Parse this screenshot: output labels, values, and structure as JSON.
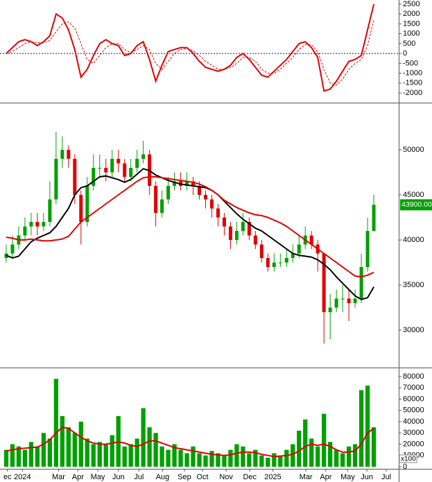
{
  "chart_data": [
    {
      "type": "line",
      "xlim": [
        -1,
        63
      ],
      "ylim": [
        -2490,
        2710
      ],
      "yticks": [
        2500,
        2000,
        1500,
        1000,
        500,
        0,
        -500,
        -1000,
        -1500,
        -2000
      ],
      "reference_line": 0,
      "reference_color": "#0000cc",
      "series": [
        {
          "color": "#e00000",
          "values": [
            0,
            300,
            600,
            700,
            600,
            400,
            600,
            900,
            2000,
            1800,
            1200,
            200,
            -1200,
            -800,
            -100,
            500,
            700,
            500,
            400,
            -100,
            0,
            400,
            600,
            -300,
            -1400,
            -600,
            100,
            200,
            300,
            300,
            0,
            -400,
            -700,
            -800,
            -900,
            -800,
            -600,
            -200,
            0,
            -300,
            -700,
            -1100,
            -1200,
            -900,
            -600,
            -300,
            100,
            500,
            600,
            300,
            -200,
            -1900,
            -1800,
            -1400,
            -900,
            -400,
            -300,
            -100,
            1200,
            2500
          ]
        },
        {
          "color": "#e00000",
          "dashed": true,
          "values": [
            0,
            100,
            300,
            500,
            600,
            550,
            550,
            650,
            1100,
            1500,
            1600,
            1300,
            500,
            -300,
            -500,
            -100,
            300,
            500,
            500,
            200,
            50,
            200,
            400,
            200,
            -500,
            -800,
            -400,
            0,
            200,
            250,
            150,
            -100,
            -400,
            -600,
            -800,
            -800,
            -700,
            -500,
            -200,
            -200,
            -400,
            -800,
            -1000,
            -1000,
            -800,
            -500,
            -200,
            200,
            450,
            450,
            100,
            -800,
            -1500,
            -1600,
            -1300,
            -800,
            -500,
            -300,
            400,
            1700
          ]
        }
      ]
    },
    {
      "type": "candlestick",
      "xlim": [
        -1,
        63
      ],
      "ylim": [
        25850,
        55080
      ],
      "yticks": [
        50000,
        45000,
        40000,
        35000,
        30000
      ],
      "up_color": "#00a000",
      "down_color": "#e00000",
      "open": [
        38000,
        38500,
        39500,
        40500,
        41500,
        42000,
        41500,
        42000,
        44500,
        49000,
        50000,
        49000,
        45000,
        42000,
        46000,
        48000,
        48000,
        47500,
        49000,
        48500,
        47000,
        48000,
        49000,
        49500,
        46000,
        43000,
        44500,
        46000,
        46500,
        46000,
        46500,
        46000,
        45000,
        44500,
        43500,
        42500,
        41500,
        40000,
        41000,
        42000,
        40500,
        39500,
        38000,
        37000,
        37500,
        37500,
        38000,
        38500,
        39500,
        40500,
        39500,
        38500,
        32000,
        32500,
        33500,
        33500,
        33000,
        33500,
        37000,
        41000
      ],
      "high": [
        39500,
        40500,
        41500,
        42500,
        43000,
        43000,
        43000,
        46500,
        52000,
        51500,
        50500,
        49500,
        45500,
        47000,
        49500,
        49500,
        49000,
        50000,
        50000,
        49000,
        49000,
        50000,
        51000,
        50000,
        46500,
        45500,
        47000,
        47500,
        47500,
        47500,
        47000,
        46500,
        45500,
        45000,
        44000,
        43000,
        42000,
        42000,
        43000,
        42500,
        41000,
        40000,
        38500,
        38500,
        38500,
        39000,
        39500,
        40500,
        41500,
        41000,
        40000,
        38500,
        34000,
        34500,
        35000,
        34500,
        34500,
        38500,
        42500,
        45000
      ],
      "low": [
        37500,
        38000,
        39000,
        40000,
        40500,
        40500,
        41000,
        41500,
        44000,
        48000,
        48000,
        44000,
        39500,
        41500,
        45500,
        47000,
        46500,
        47000,
        47500,
        46500,
        46500,
        47500,
        48500,
        45000,
        41500,
        42500,
        44000,
        45500,
        45500,
        45500,
        45000,
        44500,
        43500,
        42500,
        41500,
        40500,
        39000,
        39500,
        40500,
        40000,
        39000,
        37500,
        36500,
        36500,
        37000,
        37000,
        37500,
        38000,
        39000,
        39000,
        36500,
        28500,
        29000,
        32000,
        32000,
        31000,
        32500,
        33000,
        36500,
        41000
      ],
      "close": [
        38500,
        39500,
        40500,
        41500,
        42000,
        41500,
        42000,
        44500,
        49000,
        50000,
        49000,
        45000,
        42000,
        46000,
        48000,
        48000,
        47500,
        49000,
        48500,
        47000,
        48000,
        49000,
        49500,
        46000,
        43000,
        44500,
        46000,
        46500,
        46000,
        46500,
        46000,
        45000,
        44500,
        43500,
        42500,
        41500,
        40000,
        41000,
        42000,
        40500,
        39500,
        38000,
        37000,
        37500,
        37500,
        38000,
        38500,
        39500,
        40500,
        39500,
        38500,
        32000,
        32500,
        33500,
        33500,
        33000,
        33500,
        37000,
        41000,
        43900
      ],
      "series": [
        {
          "color": "#000000",
          "values": [
            38300,
            38000,
            38200,
            39000,
            39800,
            40200,
            40500,
            40800,
            41500,
            42500,
            43500,
            45000,
            45800,
            46000,
            46500,
            47000,
            47100,
            46900,
            46700,
            46400,
            46700,
            47300,
            47900,
            47700,
            47200,
            46900,
            46600,
            46400,
            46200,
            46100,
            46000,
            45900,
            45800,
            45500,
            45000,
            44300,
            43600,
            42900,
            42300,
            41800,
            41300,
            41000,
            40500,
            40000,
            39500,
            39000,
            38500,
            38300,
            38200,
            38100,
            37800,
            37300,
            36700,
            35900,
            35200,
            34500,
            33800,
            33400,
            33600,
            34800
          ]
        },
        {
          "color": "#e00000",
          "values": [
            40300,
            40200,
            40000,
            40000,
            40100,
            40000,
            39900,
            39900,
            40000,
            40100,
            40400,
            41200,
            42000,
            42500,
            43000,
            43500,
            44000,
            44500,
            45000,
            45500,
            46000,
            46500,
            46900,
            47000,
            47000,
            46900,
            46800,
            46700,
            46600,
            46500,
            46400,
            46200,
            45900,
            45500,
            45000,
            44400,
            44000,
            43600,
            43300,
            43000,
            42800,
            42700,
            42500,
            42200,
            41900,
            41500,
            41000,
            40500,
            40000,
            39500,
            39000,
            38500,
            38000,
            37500,
            37000,
            36500,
            36000,
            35900,
            36100,
            36400
          ]
        }
      ],
      "last_price": {
        "value": 43900,
        "label": "43900.00"
      },
      "last_price_color": "#00a000"
    },
    {
      "type": "bar",
      "xlim": [
        -1,
        63
      ],
      "ylim": [
        -1850,
        86770
      ],
      "yticks": [
        80000,
        70000,
        60000,
        50000,
        40000,
        30000,
        20000,
        10000,
        0
      ],
      "volume_unit": "x100",
      "color": "#00a000",
      "values": [
        15000,
        20000,
        18000,
        15000,
        22000,
        18000,
        30000,
        25000,
        78000,
        45000,
        35000,
        30000,
        40000,
        25000,
        20000,
        22000,
        20000,
        28000,
        45000,
        18000,
        20000,
        25000,
        52000,
        35000,
        30000,
        18000,
        15000,
        20000,
        15000,
        12000,
        18000,
        12000,
        10000,
        14000,
        12000,
        10000,
        15000,
        20000,
        18000,
        12000,
        15000,
        10000,
        8000,
        12000,
        10000,
        15000,
        20000,
        32000,
        42000,
        25000,
        18000,
        47000,
        22000,
        15000,
        12000,
        18000,
        20000,
        68000,
        72000,
        35000
      ],
      "series": [
        {
          "color": "#e00000",
          "values": [
            14000,
            15000,
            16000,
            16500,
            17000,
            17500,
            20000,
            24000,
            30000,
            35000,
            34000,
            30000,
            26000,
            23000,
            21000,
            20000,
            20000,
            21000,
            22000,
            21000,
            19000,
            18000,
            20000,
            23000,
            23000,
            21000,
            19000,
            17000,
            16000,
            15000,
            14000,
            13000,
            12000,
            11000,
            10500,
            10000,
            10500,
            12000,
            13000,
            13000,
            12500,
            11000,
            10000,
            9000,
            9500,
            10000,
            11000,
            14000,
            18000,
            20000,
            19000,
            20000,
            18000,
            15000,
            13000,
            13000,
            14000,
            20000,
            30000,
            34000
          ]
        }
      ],
      "xticks": [
        {
          "value": 0.2,
          "label": "ec"
        },
        {
          "value": 2.6,
          "label": "2024"
        },
        {
          "value": 8.4,
          "label": "Mar"
        },
        {
          "value": 11.5,
          "label": "Apr"
        },
        {
          "value": 14.7,
          "label": "May"
        },
        {
          "value": 18.0,
          "label": "Jun"
        },
        {
          "value": 21.3,
          "label": "Jul"
        },
        {
          "value": 25.1,
          "label": "Aug"
        },
        {
          "value": 28.6,
          "label": "Sep"
        },
        {
          "value": 31.5,
          "label": "Oct"
        },
        {
          "value": 35.3,
          "label": "Nov"
        },
        {
          "value": 39.1,
          "label": "Dec"
        },
        {
          "value": 42.8,
          "label": "2025"
        },
        {
          "value": 48.1,
          "label": "Mar"
        },
        {
          "value": 51.3,
          "label": "Apr"
        },
        {
          "value": 54.8,
          "label": "May"
        },
        {
          "value": 57.9,
          "label": "Jun"
        },
        {
          "value": 61.0,
          "label": "Jul"
        }
      ]
    }
  ]
}
